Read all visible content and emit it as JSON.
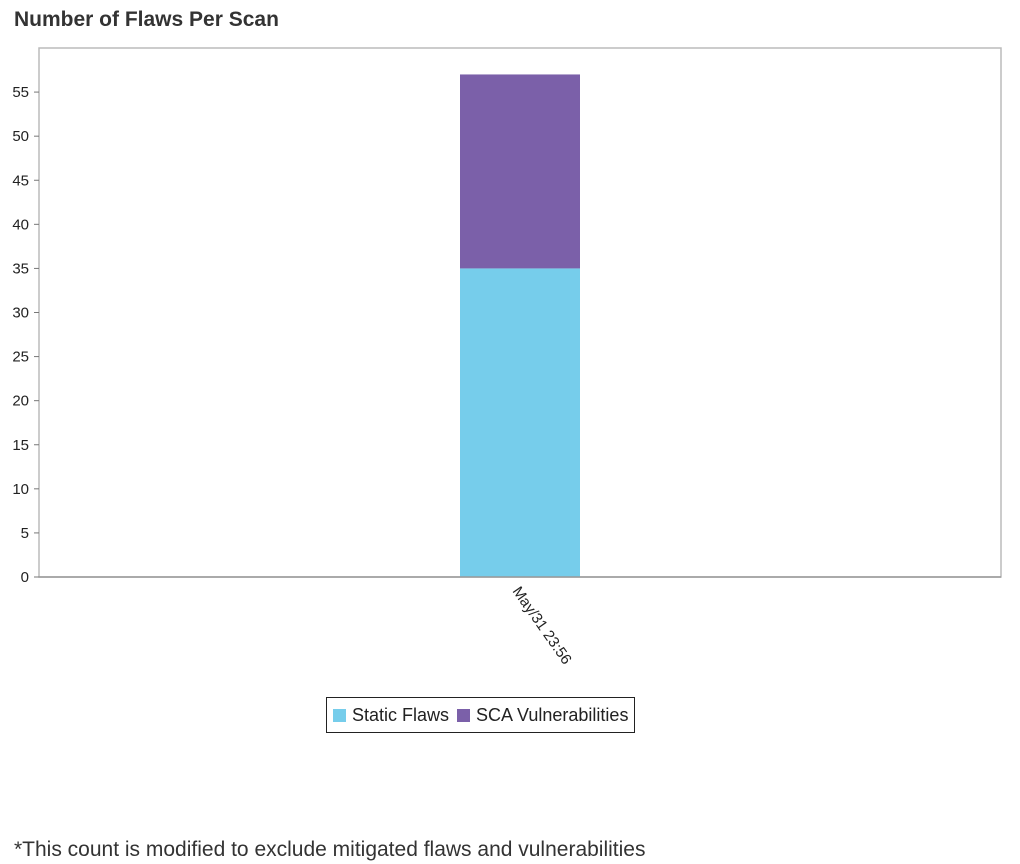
{
  "title": "Number of Flaws Per Scan",
  "footnote": "*This count is modified to exclude mitigated flaws and vulnerabilities",
  "colors": {
    "static": "#76CDEB",
    "sca": "#7B60A9",
    "axis": "#999999",
    "frame": "#bbbbbb"
  },
  "chart_data": {
    "type": "bar",
    "stacked": true,
    "categories": [
      "May/31 23:56"
    ],
    "series": [
      {
        "name": "Static Flaws",
        "values": [
          35
        ]
      },
      {
        "name": "SCA Vulnerabilities",
        "values": [
          22
        ]
      }
    ],
    "title": "Number of Flaws Per Scan",
    "xlabel": "",
    "ylabel": "",
    "ylim": [
      0,
      60
    ],
    "yticks": [
      0,
      5,
      10,
      15,
      20,
      25,
      30,
      35,
      40,
      45,
      50,
      55
    ],
    "grid": false,
    "legend_position": "bottom"
  }
}
